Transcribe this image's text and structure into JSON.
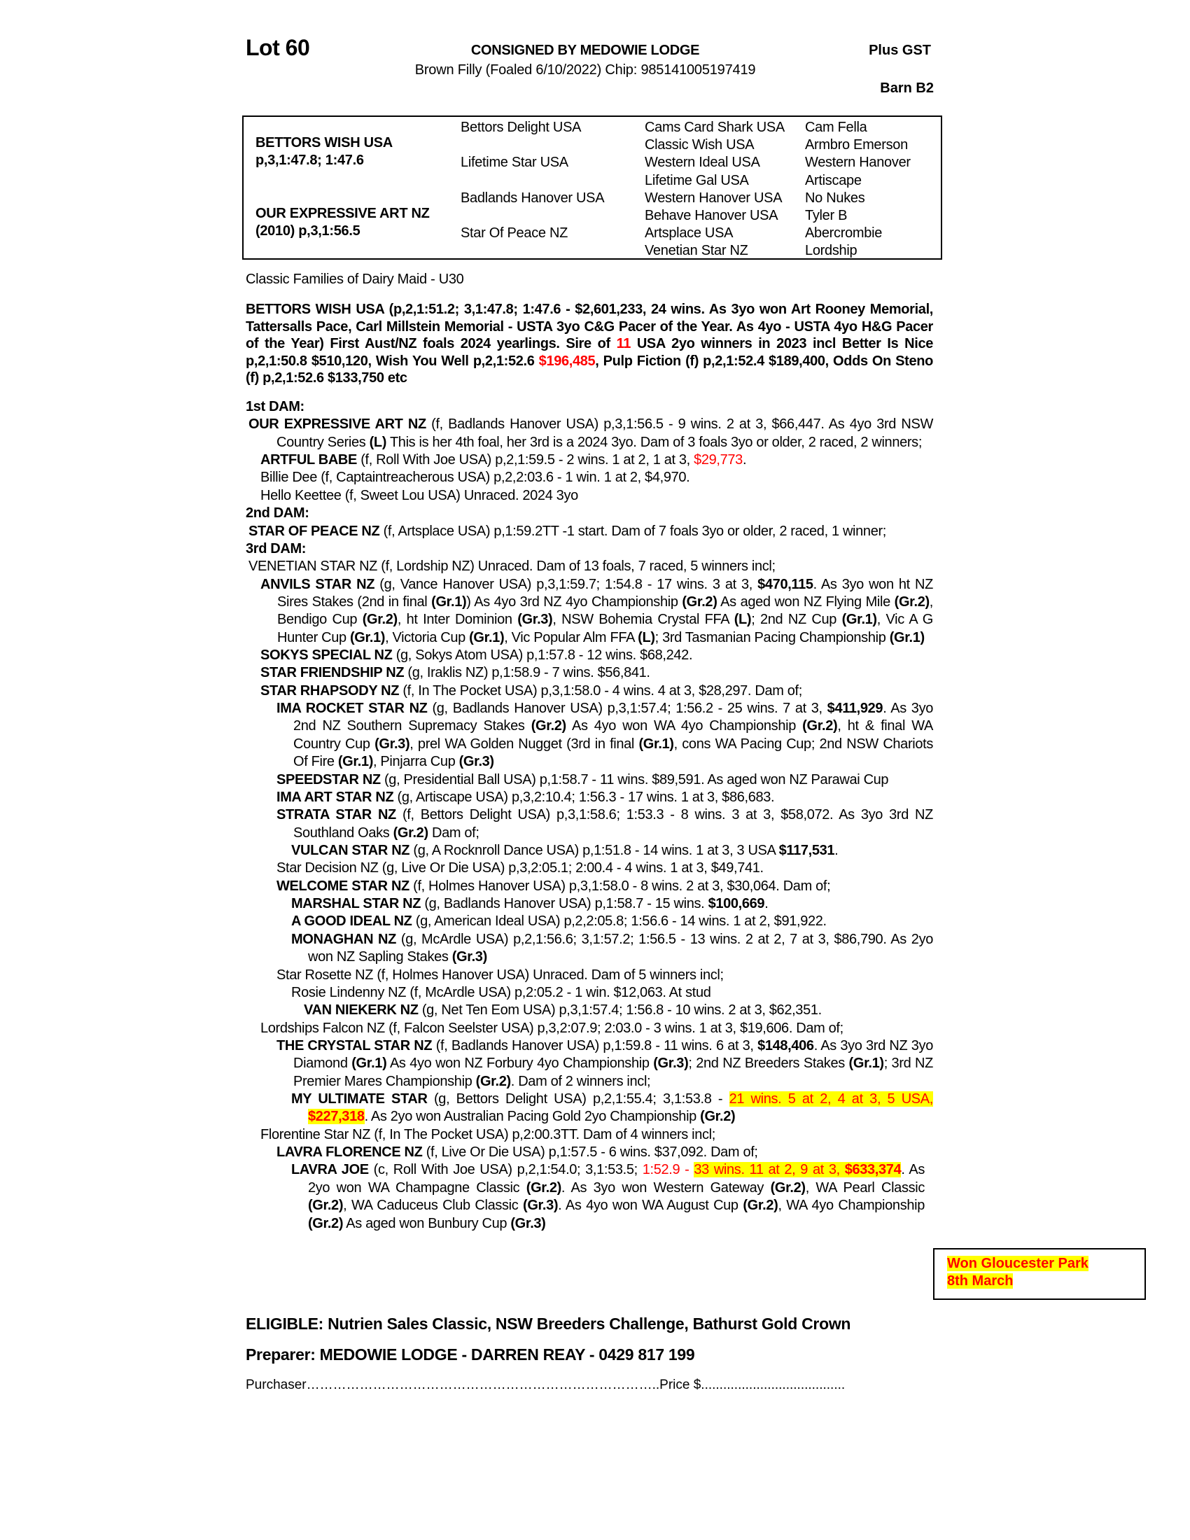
{
  "header": {
    "lot": "Lot 60",
    "consignor": "CONSIGNED BY MEDOWIE LODGE",
    "plus_gst": "Plus GST",
    "description": "Brown Filly (Foaled 6/10/2022) Chip: 985141005197419",
    "barn": "Barn B2"
  },
  "pedigree": {
    "sire": {
      "name": "BETTORS WISH USA",
      "record": "p,3,1:47.8; 1:47.6"
    },
    "dam": {
      "name": "OUR EXPRESSIVE ART NZ",
      "record": "(2010) p,3,1:56.5"
    },
    "gen2": [
      "Bettors Delight USA",
      "Lifetime Star USA",
      "Badlands Hanover USA",
      "Star Of Peace NZ"
    ],
    "gen3": [
      "Cams Card Shark USA",
      "Classic Wish USA",
      "Western Ideal USA",
      "Lifetime Gal USA",
      "Western Hanover USA",
      "Behave Hanover USA",
      "Artsplace USA",
      "Venetian Star NZ"
    ],
    "gen4": [
      "Cam Fella",
      "Armbro Emerson",
      "Western Hanover",
      "Artiscape",
      "No Nukes",
      "Tyler B",
      "Abercrombie",
      "Lordship"
    ]
  },
  "family_line": "Classic Families of Dairy Maid - U30",
  "sire_summary": [
    {
      "s": "",
      "t": "BETTORS WISH USA (p,2,1:51.2; 3,1:47.8; 1:47.6 - $2,601,233, 24 wins. As 3yo won Art Rooney Memorial, Tattersalls Pace, Carl Millstein Memorial - USTA 3yo C&G Pacer of the Year. As 4yo - USTA 4yo H&G Pacer of the Year) First Aust/NZ foals 2024 yearlings. Sire of "
    },
    {
      "s": "r",
      "t": "11"
    },
    {
      "s": "",
      "t": " USA 2yo winners in 2023 incl Better Is Nice p,2,1:50.8 $510,120, Wish You Well p,2,1:52.6 "
    },
    {
      "s": "r",
      "t": "$196,485"
    },
    {
      "s": "",
      "t": ", Pulp Fiction (f) p,2,1:52.4 $189,400, Odds On Steno (f) p,2,1:52.6 $133,750 etc"
    }
  ],
  "sections": [
    {
      "heading": "1st DAM:",
      "entries": [
        {
          "level": 0,
          "segs": [
            {
              "s": "b",
              "t": "OUR EXPRESSIVE ART NZ"
            },
            {
              "s": "",
              "t": " (f, Badlands Hanover USA) p,3,1:56.5 - 9 wins. 2 at 3, $66,447. As 4yo 3rd NSW Country Series "
            },
            {
              "s": "b",
              "t": "(L)"
            },
            {
              "s": "",
              "t": " This is her 4th foal, her 3rd is a 2024 3yo. Dam of 3 foals 3yo or older, 2 raced, 2 winners;"
            }
          ]
        },
        {
          "level": 1,
          "segs": [
            {
              "s": "b",
              "t": "ARTFUL BABE"
            },
            {
              "s": "",
              "t": " (f, Roll With Joe USA) p,2,1:59.5 - 2 wins. 1 at 2, 1 at 3, "
            },
            {
              "s": "r",
              "t": "$29,773"
            },
            {
              "s": "",
              "t": "."
            }
          ]
        },
        {
          "level": 1,
          "segs": [
            {
              "s": "",
              "t": "Billie Dee (f, Captaintreacherous USA) p,2,2:03.6 - 1 win. 1 at 2, $4,970."
            }
          ]
        },
        {
          "level": 1,
          "segs": [
            {
              "s": "",
              "t": "Hello Keettee (f, Sweet Lou USA) Unraced. 2024 3yo"
            }
          ]
        }
      ]
    },
    {
      "heading": "2nd DAM:",
      "entries": [
        {
          "level": 0,
          "segs": [
            {
              "s": "b",
              "t": "STAR OF PEACE NZ"
            },
            {
              "s": "",
              "t": " (f, Artsplace USA) p,1:59.2TT -1 start. Dam of 7 foals 3yo or older, 2 raced, 1 winner;"
            }
          ]
        }
      ]
    },
    {
      "heading": "3rd DAM:",
      "entries": [
        {
          "level": 0,
          "segs": [
            {
              "s": "",
              "t": "VENETIAN STAR NZ (f, Lordship NZ) Unraced. Dam of 13 foals, 7 raced, 5 winners incl;"
            }
          ]
        },
        {
          "level": 1,
          "segs": [
            {
              "s": "b",
              "t": "ANVILS STAR NZ"
            },
            {
              "s": "",
              "t": " (g, Vance Hanover USA) p,3,1:59.7; 1:54.8 - 17 wins. 3 at 3, "
            },
            {
              "s": "b",
              "t": "$470,115"
            },
            {
              "s": "",
              "t": ". As 3yo won ht NZ Sires Stakes (2nd in final "
            },
            {
              "s": "b",
              "t": "(Gr.1)"
            },
            {
              "s": "",
              "t": ") As 4yo 3rd NZ 4yo Championship "
            },
            {
              "s": "b",
              "t": "(Gr.2)"
            },
            {
              "s": "",
              "t": " As aged won NZ Flying Mile "
            },
            {
              "s": "b",
              "t": "(Gr.2)"
            },
            {
              "s": "",
              "t": ", Bendigo Cup "
            },
            {
              "s": "b",
              "t": "(Gr.2)"
            },
            {
              "s": "",
              "t": ", ht Inter Dominion "
            },
            {
              "s": "b",
              "t": "(Gr.3)"
            },
            {
              "s": "",
              "t": ", NSW Bohemia Crystal FFA "
            },
            {
              "s": "b",
              "t": "(L)"
            },
            {
              "s": "",
              "t": "; 2nd NZ Cup "
            },
            {
              "s": "b",
              "t": "(Gr.1)"
            },
            {
              "s": "",
              "t": ", Vic A G Hunter Cup "
            },
            {
              "s": "b",
              "t": "(Gr.1)"
            },
            {
              "s": "",
              "t": ", Victoria Cup "
            },
            {
              "s": "b",
              "t": "(Gr.1)"
            },
            {
              "s": "",
              "t": ", Vic Popular Alm FFA "
            },
            {
              "s": "b",
              "t": "(L)"
            },
            {
              "s": "",
              "t": "; 3rd Tasmanian Pacing Championship "
            },
            {
              "s": "b",
              "t": "(Gr.1)"
            }
          ]
        },
        {
          "level": 1,
          "segs": [
            {
              "s": "b",
              "t": "SOKYS SPECIAL NZ"
            },
            {
              "s": "",
              "t": " (g, Sokys Atom USA) p,1:57.8 - 12 wins. $68,242."
            }
          ]
        },
        {
          "level": 1,
          "segs": [
            {
              "s": "b",
              "t": "STAR FRIENDSHIP NZ"
            },
            {
              "s": "",
              "t": " (g, Iraklis NZ) p,1:58.9 - 7 wins. $56,841."
            }
          ]
        },
        {
          "level": 1,
          "segs": [
            {
              "s": "b",
              "t": "STAR RHAPSODY NZ"
            },
            {
              "s": "",
              "t": " (f, In The Pocket USA) p,3,1:58.0 - 4 wins. 4 at 3, $28,297. Dam of;"
            }
          ]
        },
        {
          "level": 2,
          "segs": [
            {
              "s": "b",
              "t": "IMA ROCKET STAR NZ"
            },
            {
              "s": "",
              "t": " (g, Badlands Hanover USA) p,3,1:57.4; 1:56.2 - 25 wins. 7 at 3, "
            },
            {
              "s": "b",
              "t": "$411,929"
            },
            {
              "s": "",
              "t": ". As 3yo 2nd NZ Southern Supremacy Stakes "
            },
            {
              "s": "b",
              "t": "(Gr.2)"
            },
            {
              "s": "",
              "t": " As 4yo won WA 4yo Championship "
            },
            {
              "s": "b",
              "t": "(Gr.2)"
            },
            {
              "s": "",
              "t": ", ht & final WA Country Cup "
            },
            {
              "s": "b",
              "t": "(Gr.3)"
            },
            {
              "s": "",
              "t": ", prel WA Golden Nugget (3rd in final "
            },
            {
              "s": "b",
              "t": "(Gr.1)"
            },
            {
              "s": "",
              "t": ", cons WA Pacing Cup; 2nd NSW Chariots Of Fire "
            },
            {
              "s": "b",
              "t": "(Gr.1)"
            },
            {
              "s": "",
              "t": ", Pinjarra Cup "
            },
            {
              "s": "b",
              "t": "(Gr.3)"
            }
          ]
        },
        {
          "level": 2,
          "segs": [
            {
              "s": "b",
              "t": "SPEEDSTAR NZ"
            },
            {
              "s": "",
              "t": " (g, Presidential Ball USA) p,1:58.7 - 11 wins. $89,591. As aged won NZ Parawai Cup"
            }
          ]
        },
        {
          "level": 2,
          "segs": [
            {
              "s": "b",
              "t": "IMA ART STAR NZ"
            },
            {
              "s": "",
              "t": " (g, Artiscape USA) p,3,2:10.4; 1:56.3 - 17 wins. 1 at 3, $86,683."
            }
          ]
        },
        {
          "level": 2,
          "segs": [
            {
              "s": "b",
              "t": "STRATA STAR NZ"
            },
            {
              "s": "",
              "t": " (f, Bettors Delight USA) p,3,1:58.6; 1:53.3 - 8 wins. 3 at 3, $58,072. As 3yo 3rd NZ Southland Oaks "
            },
            {
              "s": "b",
              "t": "(Gr.2)"
            },
            {
              "s": "",
              "t": " Dam of;"
            }
          ]
        },
        {
          "level": 3,
          "segs": [
            {
              "s": "b",
              "t": "VULCAN STAR NZ"
            },
            {
              "s": "",
              "t": " (g, A Rocknroll Dance USA) p,1:51.8 - 14 wins. 1 at 3, 3 USA "
            },
            {
              "s": "b",
              "t": "$117,531"
            },
            {
              "s": "",
              "t": "."
            }
          ]
        },
        {
          "level": 2,
          "segs": [
            {
              "s": "",
              "t": "Star Decision NZ (g, Live Or Die USA) p,3,2:05.1; 2:00.4 - 4 wins. 1 at 3, $49,741."
            }
          ]
        },
        {
          "level": 2,
          "segs": [
            {
              "s": "b",
              "t": "WELCOME STAR NZ"
            },
            {
              "s": "",
              "t": " (f, Holmes Hanover USA) p,3,1:58.0 - 8 wins. 2 at 3, $30,064. Dam of;"
            }
          ]
        },
        {
          "level": 3,
          "segs": [
            {
              "s": "b",
              "t": "MARSHAL STAR NZ"
            },
            {
              "s": "",
              "t": " (g, Badlands Hanover USA) p,1:58.7 - 15 wins. "
            },
            {
              "s": "b",
              "t": "$100,669"
            },
            {
              "s": "",
              "t": "."
            }
          ]
        },
        {
          "level": 3,
          "segs": [
            {
              "s": "b",
              "t": "A GOOD IDEAL NZ"
            },
            {
              "s": "",
              "t": " (g, American Ideal USA) p,2,2:05.8; 1:56.6 - 14 wins. 1 at 2, $91,922."
            }
          ]
        },
        {
          "level": 3,
          "segs": [
            {
              "s": "b",
              "t": "MONAGHAN NZ"
            },
            {
              "s": "",
              "t": " (g, McArdle USA) p,2,1:56.6; 3,1:57.2; 1:56.5 - 13 wins. 2 at 2, 7 at 3, $86,790. As 2yo won NZ Sapling Stakes "
            },
            {
              "s": "b",
              "t": "(Gr.3)"
            }
          ]
        },
        {
          "level": 2,
          "segs": [
            {
              "s": "",
              "t": "Star Rosette NZ (f, Holmes Hanover USA) Unraced. Dam of 5 winners incl;"
            }
          ]
        },
        {
          "level": 3,
          "segs": [
            {
              "s": "",
              "t": "Rosie Lindenny NZ (f, McArdle USA) p,2:05.2 - 1 win. $12,063. At stud"
            }
          ]
        },
        {
          "level": 4,
          "segs": [
            {
              "s": "b",
              "t": "VAN NIEKERK NZ"
            },
            {
              "s": "",
              "t": " (g, Net Ten Eom USA) p,3,1:57.4; 1:56.8 - 10 wins. 2 at 3, $62,351."
            }
          ]
        },
        {
          "level": 1,
          "segs": [
            {
              "s": "",
              "t": "Lordships Falcon NZ (f, Falcon Seelster USA) p,3,2:07.9; 2:03.0 - 3 wins. 1 at 3, $19,606. Dam of;"
            }
          ]
        },
        {
          "level": 2,
          "segs": [
            {
              "s": "b",
              "t": "THE CRYSTAL STAR NZ"
            },
            {
              "s": "",
              "t": " (f, Badlands Hanover USA) p,1:59.8 - 11 wins. 6 at 3, "
            },
            {
              "s": "b",
              "t": "$148,406"
            },
            {
              "s": "",
              "t": ". As 3yo 3rd NZ 3yo Diamond "
            },
            {
              "s": "b",
              "t": "(Gr.1)"
            },
            {
              "s": "",
              "t": " As 4yo won NZ Forbury 4yo Championship "
            },
            {
              "s": "b",
              "t": "(Gr.3)"
            },
            {
              "s": "",
              "t": "; 2nd NZ Breeders Stakes "
            },
            {
              "s": "b",
              "t": "(Gr.1)"
            },
            {
              "s": "",
              "t": "; 3rd NZ Premier Mares Championship "
            },
            {
              "s": "b",
              "t": "(Gr.2)"
            },
            {
              "s": "",
              "t": ". Dam of 2 winners incl;"
            }
          ]
        },
        {
          "level": 3,
          "segs": [
            {
              "s": "b",
              "t": "MY ULTIMATE STAR"
            },
            {
              "s": "",
              "t": " (g, Bettors Delight USA) p,2,1:55.4; 3,1:53.8 - "
            },
            {
              "s": "hl",
              "t": "21 wins. 5 at 2, 4 at 3, 5 USA, "
            },
            {
              "s": "hlb",
              "t": "$227,318"
            },
            {
              "s": "",
              "t": ". As 2yo won Australian Pacing Gold 2yo Championship "
            },
            {
              "s": "b",
              "t": "(Gr.2)"
            }
          ]
        },
        {
          "level": 1,
          "segs": [
            {
              "s": "",
              "t": "Florentine Star NZ (f, In The Pocket USA) p,2:00.3TT. Dam of 4 winners incl;"
            }
          ]
        },
        {
          "level": 2,
          "segs": [
            {
              "s": "b",
              "t": "LAVRA FLORENCE NZ"
            },
            {
              "s": "",
              "t": " (f, Live Or Die USA) p,1:57.5 - 6 wins. $37,092. Dam of;"
            }
          ]
        },
        {
          "level": 3,
          "narrow": true,
          "segs": [
            {
              "s": "b",
              "t": "LAVRA JOE"
            },
            {
              "s": "",
              "t": " (c, Roll With Joe USA) p,2,1:54.0; 3,1:53.5; "
            },
            {
              "s": "r",
              "t": "1:52.9 - "
            },
            {
              "s": "hl",
              "t": "33 wins. 11 at 2, 9 at 3, "
            },
            {
              "s": "hlb",
              "t": "$633,374"
            },
            {
              "s": "",
              "t": ". As 2yo won WA Champagne Classic "
            },
            {
              "s": "b",
              "t": "(Gr.2)"
            },
            {
              "s": "",
              "t": ". As 3yo won Western Gateway "
            },
            {
              "s": "b",
              "t": "(Gr.2)"
            },
            {
              "s": "",
              "t": ", WA Pearl Classic "
            },
            {
              "s": "b",
              "t": "(Gr.2)"
            },
            {
              "s": "",
              "t": ", WA Caduceus Club Classic "
            },
            {
              "s": "b",
              "t": "(Gr.3)"
            },
            {
              "s": "",
              "t": ". As 4yo won WA August Cup "
            },
            {
              "s": "b",
              "t": "(Gr.2)"
            },
            {
              "s": "",
              "t": ", WA 4yo Championship "
            },
            {
              "s": "b",
              "t": "(Gr.2)"
            },
            {
              "s": "",
              "t": " As aged won Bunbury Cup "
            },
            {
              "s": "b",
              "t": "(Gr.3)"
            }
          ]
        }
      ]
    }
  ],
  "note_box": [
    "Won Gloucester Park",
    "8th March"
  ],
  "eligible": "ELIGIBLE: Nutrien Sales Classic, NSW Breeders Challenge, Bathurst Gold Crown",
  "preparer": "Preparer: MEDOWIE LODGE - DARREN REAY - 0429 817 199",
  "purchaser_line": "Purchaser……………………………………………………………………..Price $.......................................",
  "colors": {
    "highlight": "#ffff00",
    "emphasis": "#ff0000"
  }
}
